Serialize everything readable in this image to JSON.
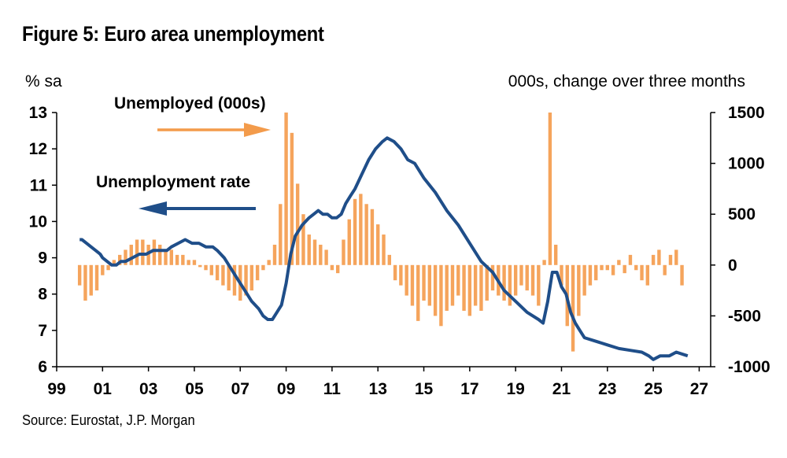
{
  "title": "Figure 5: Euro area unemployment",
  "source": "Source: Eurostat, J.P. Morgan",
  "colors": {
    "rate_line": "#1f4e89",
    "unemployed_bars": "#f5a45c",
    "annotation_arrow_orange": "#f39b4b",
    "axis": "#000000"
  },
  "chart_data": {
    "type": "bar+line",
    "left_axis": {
      "unit_label": "% sa",
      "ylim": [
        6,
        13
      ],
      "ticks": [
        6,
        7,
        8,
        9,
        10,
        11,
        12,
        13
      ]
    },
    "right_axis": {
      "unit_label": "000s, change over three months",
      "ylim": [
        -1000,
        1500
      ],
      "ticks": [
        -1000,
        -500,
        0,
        500,
        1000,
        1500
      ]
    },
    "x_axis": {
      "xlim": [
        1999,
        2027.5
      ],
      "tick_values": [
        1999,
        2001,
        2003,
        2005,
        2007,
        2009,
        2011,
        2013,
        2015,
        2017,
        2019,
        2021,
        2023,
        2025,
        2027
      ],
      "tick_labels": [
        "99",
        "01",
        "03",
        "05",
        "07",
        "09",
        "11",
        "13",
        "15",
        "17",
        "19",
        "21",
        "23",
        "25",
        "27"
      ]
    },
    "annotations": [
      {
        "text": "Unemployed (000s)",
        "arrow": "right",
        "refers_to": "right_axis"
      },
      {
        "text": "Unemployment rate",
        "arrow": "left",
        "refers_to": "left_axis"
      }
    ],
    "series": [
      {
        "name": "Unemployment rate",
        "axis": "left",
        "type": "line",
        "points": [
          [
            2000.0,
            9.5
          ],
          [
            2000.1,
            9.5
          ],
          [
            2000.3,
            9.4
          ],
          [
            2000.5,
            9.3
          ],
          [
            2000.7,
            9.2
          ],
          [
            2000.9,
            9.1
          ],
          [
            2001.0,
            9.0
          ],
          [
            2001.2,
            8.9
          ],
          [
            2001.4,
            8.8
          ],
          [
            2001.6,
            8.8
          ],
          [
            2001.8,
            8.9
          ],
          [
            2002.0,
            8.9
          ],
          [
            2002.3,
            9.0
          ],
          [
            2002.6,
            9.1
          ],
          [
            2002.9,
            9.1
          ],
          [
            2003.2,
            9.2
          ],
          [
            2003.5,
            9.2
          ],
          [
            2003.8,
            9.2
          ],
          [
            2004.0,
            9.3
          ],
          [
            2004.3,
            9.4
          ],
          [
            2004.6,
            9.5
          ],
          [
            2004.9,
            9.4
          ],
          [
            2005.2,
            9.4
          ],
          [
            2005.5,
            9.3
          ],
          [
            2005.8,
            9.3
          ],
          [
            2006.0,
            9.2
          ],
          [
            2006.3,
            9.0
          ],
          [
            2006.6,
            8.7
          ],
          [
            2006.9,
            8.4
          ],
          [
            2007.2,
            8.1
          ],
          [
            2007.5,
            7.8
          ],
          [
            2007.8,
            7.6
          ],
          [
            2008.0,
            7.4
          ],
          [
            2008.2,
            7.3
          ],
          [
            2008.4,
            7.3
          ],
          [
            2008.6,
            7.5
          ],
          [
            2008.8,
            7.7
          ],
          [
            2009.0,
            8.3
          ],
          [
            2009.2,
            9.1
          ],
          [
            2009.4,
            9.6
          ],
          [
            2009.7,
            9.9
          ],
          [
            2010.0,
            10.1
          ],
          [
            2010.2,
            10.2
          ],
          [
            2010.4,
            10.3
          ],
          [
            2010.6,
            10.2
          ],
          [
            2010.8,
            10.2
          ],
          [
            2011.0,
            10.1
          ],
          [
            2011.2,
            10.1
          ],
          [
            2011.4,
            10.2
          ],
          [
            2011.6,
            10.5
          ],
          [
            2011.8,
            10.7
          ],
          [
            2012.0,
            10.9
          ],
          [
            2012.3,
            11.3
          ],
          [
            2012.6,
            11.7
          ],
          [
            2012.9,
            12.0
          ],
          [
            2013.2,
            12.2
          ],
          [
            2013.4,
            12.3
          ],
          [
            2013.7,
            12.2
          ],
          [
            2014.0,
            12.0
          ],
          [
            2014.3,
            11.7
          ],
          [
            2014.6,
            11.6
          ],
          [
            2015.0,
            11.2
          ],
          [
            2015.5,
            10.8
          ],
          [
            2016.0,
            10.3
          ],
          [
            2016.5,
            9.9
          ],
          [
            2017.0,
            9.4
          ],
          [
            2017.5,
            8.9
          ],
          [
            2018.0,
            8.6
          ],
          [
            2018.5,
            8.1
          ],
          [
            2019.0,
            7.8
          ],
          [
            2019.5,
            7.5
          ],
          [
            2020.0,
            7.3
          ],
          [
            2020.2,
            7.2
          ],
          [
            2020.4,
            7.8
          ],
          [
            2020.6,
            8.6
          ],
          [
            2020.8,
            8.6
          ],
          [
            2021.0,
            8.2
          ],
          [
            2021.2,
            8.0
          ],
          [
            2021.4,
            7.5
          ],
          [
            2021.6,
            7.2
          ],
          [
            2021.8,
            7.0
          ],
          [
            2022.0,
            6.8
          ],
          [
            2022.5,
            6.7
          ],
          [
            2023.0,
            6.6
          ],
          [
            2023.5,
            6.5
          ],
          [
            2024.0,
            6.45
          ],
          [
            2024.5,
            6.4
          ],
          [
            2024.8,
            6.3
          ],
          [
            2025.0,
            6.2
          ],
          [
            2025.3,
            6.3
          ],
          [
            2025.7,
            6.3
          ],
          [
            2026.0,
            6.4
          ],
          [
            2026.5,
            6.3
          ]
        ]
      },
      {
        "name": "Unemployed (000s)",
        "axis": "right",
        "type": "bar",
        "points": [
          [
            2000.0,
            -200
          ],
          [
            2000.25,
            -350
          ],
          [
            2000.5,
            -300
          ],
          [
            2000.75,
            -250
          ],
          [
            2001.0,
            -100
          ],
          [
            2001.25,
            -50
          ],
          [
            2001.5,
            50
          ],
          [
            2001.75,
            100
          ],
          [
            2002.0,
            150
          ],
          [
            2002.25,
            200
          ],
          [
            2002.5,
            250
          ],
          [
            2002.75,
            250
          ],
          [
            2003.0,
            200
          ],
          [
            2003.25,
            250
          ],
          [
            2003.5,
            200
          ],
          [
            2003.75,
            150
          ],
          [
            2004.0,
            150
          ],
          [
            2004.25,
            100
          ],
          [
            2004.5,
            100
          ],
          [
            2004.75,
            50
          ],
          [
            2005.0,
            50
          ],
          [
            2005.25,
            -20
          ],
          [
            2005.5,
            -50
          ],
          [
            2005.75,
            -100
          ],
          [
            2006.0,
            -150
          ],
          [
            2006.25,
            -200
          ],
          [
            2006.5,
            -250
          ],
          [
            2006.75,
            -300
          ],
          [
            2007.0,
            -350
          ],
          [
            2007.25,
            -300
          ],
          [
            2007.5,
            -250
          ],
          [
            2007.75,
            -150
          ],
          [
            2008.0,
            -50
          ],
          [
            2008.25,
            50
          ],
          [
            2008.5,
            200
          ],
          [
            2008.75,
            600
          ],
          [
            2009.0,
            1500
          ],
          [
            2009.25,
            1300
          ],
          [
            2009.5,
            800
          ],
          [
            2009.75,
            500
          ],
          [
            2010.0,
            300
          ],
          [
            2010.25,
            250
          ],
          [
            2010.5,
            200
          ],
          [
            2010.75,
            150
          ],
          [
            2011.0,
            -50
          ],
          [
            2011.25,
            -80
          ],
          [
            2011.5,
            250
          ],
          [
            2011.75,
            450
          ],
          [
            2012.0,
            650
          ],
          [
            2012.25,
            700
          ],
          [
            2012.5,
            600
          ],
          [
            2012.75,
            550
          ],
          [
            2013.0,
            400
          ],
          [
            2013.25,
            300
          ],
          [
            2013.5,
            100
          ],
          [
            2013.75,
            -150
          ],
          [
            2014.0,
            -200
          ],
          [
            2014.25,
            -300
          ],
          [
            2014.5,
            -400
          ],
          [
            2014.75,
            -550
          ],
          [
            2015.0,
            -350
          ],
          [
            2015.25,
            -400
          ],
          [
            2015.5,
            -500
          ],
          [
            2015.75,
            -600
          ],
          [
            2016.0,
            -450
          ],
          [
            2016.25,
            -400
          ],
          [
            2016.5,
            -300
          ],
          [
            2016.75,
            -450
          ],
          [
            2017.0,
            -500
          ],
          [
            2017.25,
            -400
          ],
          [
            2017.5,
            -450
          ],
          [
            2017.75,
            -350
          ],
          [
            2018.0,
            -250
          ],
          [
            2018.25,
            -300
          ],
          [
            2018.5,
            -350
          ],
          [
            2018.75,
            -400
          ],
          [
            2019.0,
            -300
          ],
          [
            2019.25,
            -200
          ],
          [
            2019.5,
            -250
          ],
          [
            2019.75,
            -300
          ],
          [
            2020.0,
            -400
          ],
          [
            2020.25,
            50
          ],
          [
            2020.5,
            1500
          ],
          [
            2020.75,
            200
          ],
          [
            2021.0,
            -200
          ],
          [
            2021.25,
            -600
          ],
          [
            2021.5,
            -850
          ],
          [
            2021.75,
            -500
          ],
          [
            2022.0,
            -300
          ],
          [
            2022.25,
            -200
          ],
          [
            2022.5,
            -150
          ],
          [
            2022.75,
            -50
          ],
          [
            2023.0,
            -50
          ],
          [
            2023.25,
            -100
          ],
          [
            2023.5,
            50
          ],
          [
            2023.75,
            -80
          ],
          [
            2024.0,
            100
          ],
          [
            2024.25,
            -50
          ],
          [
            2024.5,
            -150
          ],
          [
            2024.75,
            -200
          ],
          [
            2025.0,
            100
          ],
          [
            2025.25,
            150
          ],
          [
            2025.5,
            -100
          ],
          [
            2025.75,
            100
          ],
          [
            2026.0,
            150
          ],
          [
            2026.25,
            -200
          ]
        ]
      }
    ]
  }
}
